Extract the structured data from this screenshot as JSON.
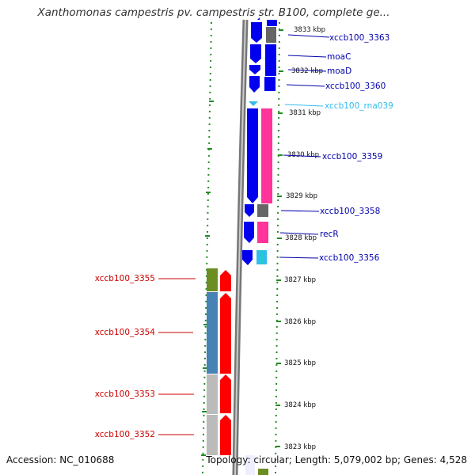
{
  "title": "Xanthomonas campestris pv. campestris str. B100, complete ge...",
  "accession": "Accession: NC_010688",
  "topology": "Topology: circular; Length: 5,079,002 bp; Genes: 4,528",
  "axis": {
    "unit": "kbp",
    "ticks": [
      "3833 kbp",
      "3832 kbp",
      "3831 kbp",
      "3830 kbp",
      "3829 kbp",
      "3828 kbp",
      "3827 kbp",
      "3826 kbp",
      "3825 kbp",
      "3824 kbp",
      "3823 kbp"
    ]
  },
  "colors": {
    "cds_forward": "#0000ee",
    "cds_reverse": "#ff0000",
    "rna": "#33bbee",
    "cog_grey": "#666666",
    "cog_pink": "#ff3399",
    "cog_olive": "#6b8e23",
    "cog_steelblue": "#4682b4",
    "cog_lightgrey": "#bbbbbb",
    "cog_cyan": "#22cccc",
    "label_forward": "#0000aa",
    "label_reverse": "#cc0000",
    "label_rna": "#33bbee",
    "axis_dots": "#228b22"
  },
  "genes": [
    {
      "name": "xccb100_3363",
      "strand": "forward",
      "color": "#0000aa"
    },
    {
      "name": "moaC",
      "strand": "forward",
      "color": "#0000aa"
    },
    {
      "name": "moaD",
      "strand": "forward",
      "color": "#0000aa"
    },
    {
      "name": "xccb100_3360",
      "strand": "forward",
      "color": "#0000aa"
    },
    {
      "name": "xccb100_rna039",
      "strand": "forward",
      "color": "#33bbee"
    },
    {
      "name": "xccb100_3359",
      "strand": "forward",
      "color": "#0000aa"
    },
    {
      "name": "xccb100_3358",
      "strand": "forward",
      "color": "#0000aa"
    },
    {
      "name": "recR",
      "strand": "forward",
      "color": "#0000aa"
    },
    {
      "name": "xccb100_3356",
      "strand": "forward",
      "color": "#0000aa"
    },
    {
      "name": "xccb100_3355",
      "strand": "reverse",
      "color": "#cc0000"
    },
    {
      "name": "xccb100_3354",
      "strand": "reverse",
      "color": "#cc0000"
    },
    {
      "name": "xccb100_3353",
      "strand": "reverse",
      "color": "#cc0000"
    },
    {
      "name": "xccb100_3352",
      "strand": "reverse",
      "color": "#cc0000"
    }
  ]
}
